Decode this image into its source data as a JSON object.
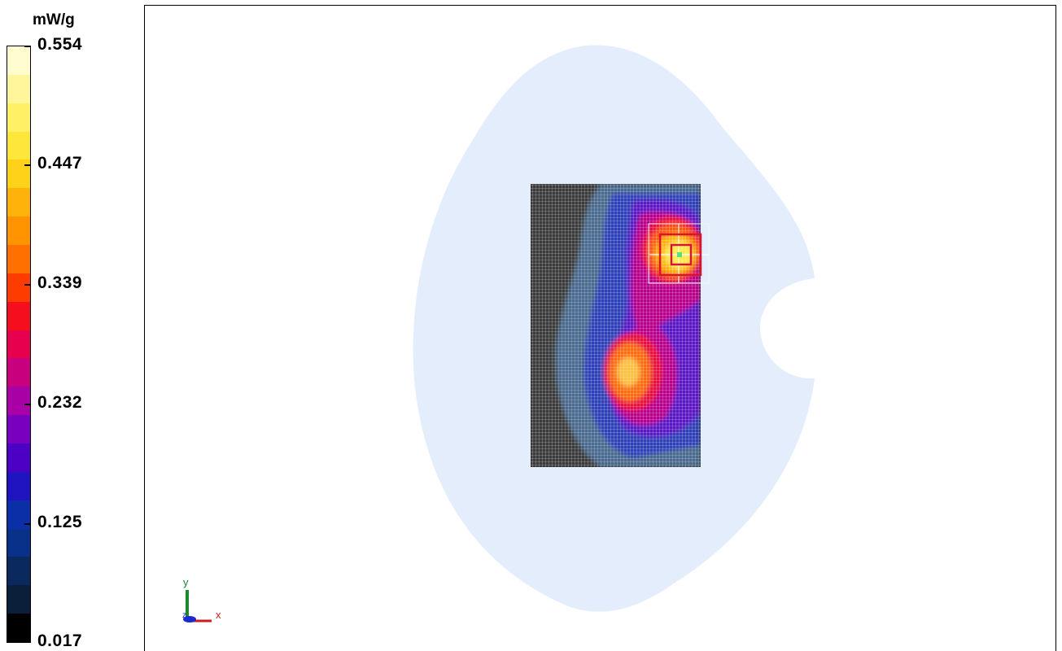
{
  "legend": {
    "unit": "mW/g",
    "ticks": [
      "0.554",
      "0.447",
      "0.339",
      "0.232",
      "0.125",
      "0.017"
    ],
    "colors": [
      "#fffccf",
      "#fff59a",
      "#fff066",
      "#ffe63a",
      "#ffd21a",
      "#ffb30a",
      "#ff9400",
      "#ff7000",
      "#ff3c00",
      "#f50f1e",
      "#e6004d",
      "#c8007d",
      "#a800a6",
      "#7a00c0",
      "#4c00c4",
      "#1f14c0",
      "#0a2fa6",
      "#09318a",
      "#0a2a5e",
      "#0b1e3a",
      "#000000"
    ]
  },
  "axes": {
    "y_label": "y",
    "x_label": "x",
    "z_label": "z"
  },
  "colors": {
    "phantom": "#e3edfc",
    "grid_bg": "#3a3a3a",
    "peak_marker": "#5ce07e",
    "cube_outline": "#d8152e"
  }
}
